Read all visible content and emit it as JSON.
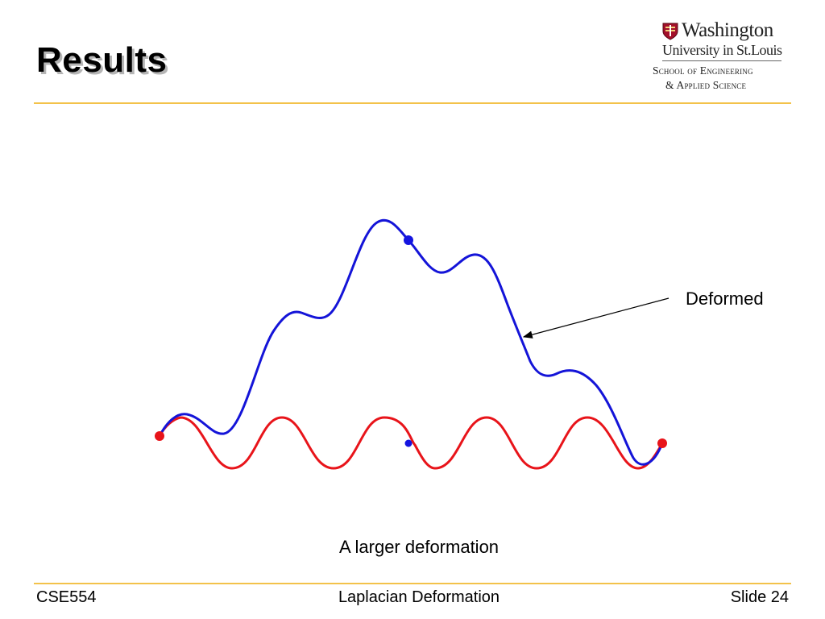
{
  "slide": {
    "title": "Results",
    "figure_label": "Deformed",
    "caption": "A larger deformation"
  },
  "logo": {
    "line1": "Washington",
    "line2": "University in St.Louis",
    "line3": "School of Engineering",
    "line4": "& Applied Science"
  },
  "footer": {
    "course": "CSE554",
    "topic": "Laplacian Deformation",
    "slide_number": "Slide 24"
  },
  "colors": {
    "accent_rule": "#f3c24a",
    "original_curve": "#e8141a",
    "deformed_curve": "#1414d8",
    "anchor_point": "#e8141a",
    "handle_point": "#1414e0"
  }
}
